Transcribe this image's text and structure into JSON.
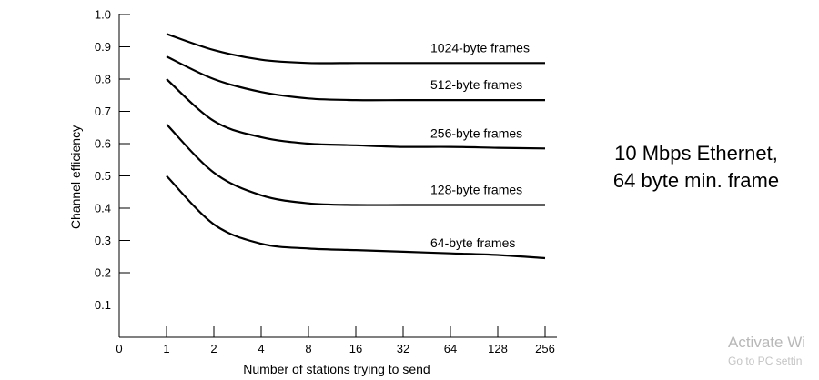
{
  "chart_data": {
    "type": "line",
    "xlabel": "Number of stations trying to send",
    "ylabel": "Channel efficiency",
    "x_scale": "log2",
    "x_ticks": [
      "0",
      "1",
      "2",
      "4",
      "8",
      "16",
      "32",
      "64",
      "128",
      "256"
    ],
    "y_ticks": [
      "0.1",
      "0.2",
      "0.3",
      "0.4",
      "0.5",
      "0.6",
      "0.7",
      "0.8",
      "0.9",
      "1.0"
    ],
    "ylim": [
      0,
      1.0
    ],
    "grid": false,
    "x": [
      1,
      2,
      4,
      8,
      16,
      32,
      64,
      128,
      256
    ],
    "series": [
      {
        "name": "1024-byte frames",
        "values": [
          0.94,
          0.89,
          0.86,
          0.85,
          0.85,
          0.85,
          0.85,
          0.85,
          0.85
        ]
      },
      {
        "name": "512-byte frames",
        "values": [
          0.87,
          0.8,
          0.76,
          0.74,
          0.735,
          0.735,
          0.735,
          0.735,
          0.735
        ]
      },
      {
        "name": "256-byte frames",
        "values": [
          0.8,
          0.67,
          0.62,
          0.6,
          0.595,
          0.59,
          0.59,
          0.587,
          0.585
        ]
      },
      {
        "name": "128-byte frames",
        "values": [
          0.66,
          0.51,
          0.44,
          0.415,
          0.41,
          0.41,
          0.41,
          0.41,
          0.41
        ]
      },
      {
        "name": "64-byte frames",
        "values": [
          0.5,
          0.35,
          0.29,
          0.275,
          0.27,
          0.265,
          0.26,
          0.255,
          0.245
        ]
      }
    ]
  },
  "side_note": {
    "line1": "10 Mbps Ethernet,",
    "line2": "64 byte min. frame"
  },
  "watermark": {
    "title": "Activate Wi",
    "subtitle": "Go to PC settin"
  }
}
